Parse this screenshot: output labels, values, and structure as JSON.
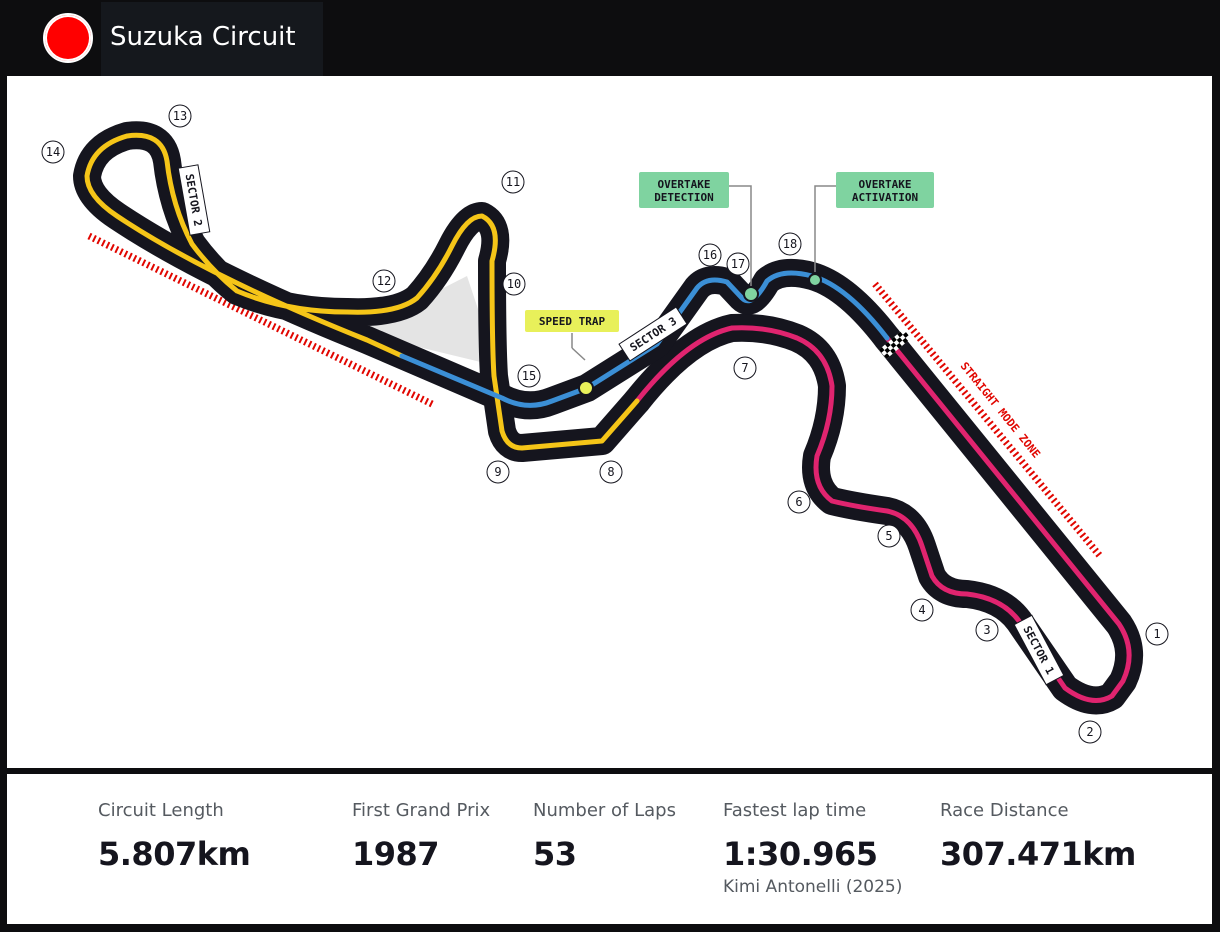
{
  "header": {
    "title": "Suzuka Circuit"
  },
  "map": {
    "turns": [
      "1",
      "2",
      "3",
      "4",
      "5",
      "6",
      "7",
      "8",
      "9",
      "10",
      "11",
      "12",
      "13",
      "14",
      "15",
      "16",
      "17",
      "18"
    ],
    "sectors": [
      "SECTOR 1",
      "SECTOR 2",
      "SECTOR 3"
    ],
    "labels": {
      "speed_trap": "SPEED TRAP",
      "overtake_detection_line1": "OVERTAKE",
      "overtake_detection_line2": "DETECTION",
      "overtake_activation_line1": "OVERTAKE",
      "overtake_activation_line2": "ACTIVATION",
      "straight_mode_zone": "STRAIGHT MODE ZONE"
    },
    "colors": {
      "sector1": "#e0246f",
      "sector2": "#f5c518",
      "sector3": "#3b8fd6",
      "track": "#15151e",
      "zone": "#e10600",
      "overtake": "#7fd3a0",
      "speed_trap": "#e8f05a"
    }
  },
  "stats": {
    "circuit_length": {
      "label": "Circuit Length",
      "value": "5.807km"
    },
    "first_gp": {
      "label": "First Grand Prix",
      "value": "1987"
    },
    "laps": {
      "label": "Number of Laps",
      "value": "53"
    },
    "fastest_lap": {
      "label": "Fastest lap time",
      "value": "1:30.965",
      "holder": "Kimi Antonelli (2025)"
    },
    "race_distance": {
      "label": "Race Distance",
      "value": "307.471km"
    }
  }
}
